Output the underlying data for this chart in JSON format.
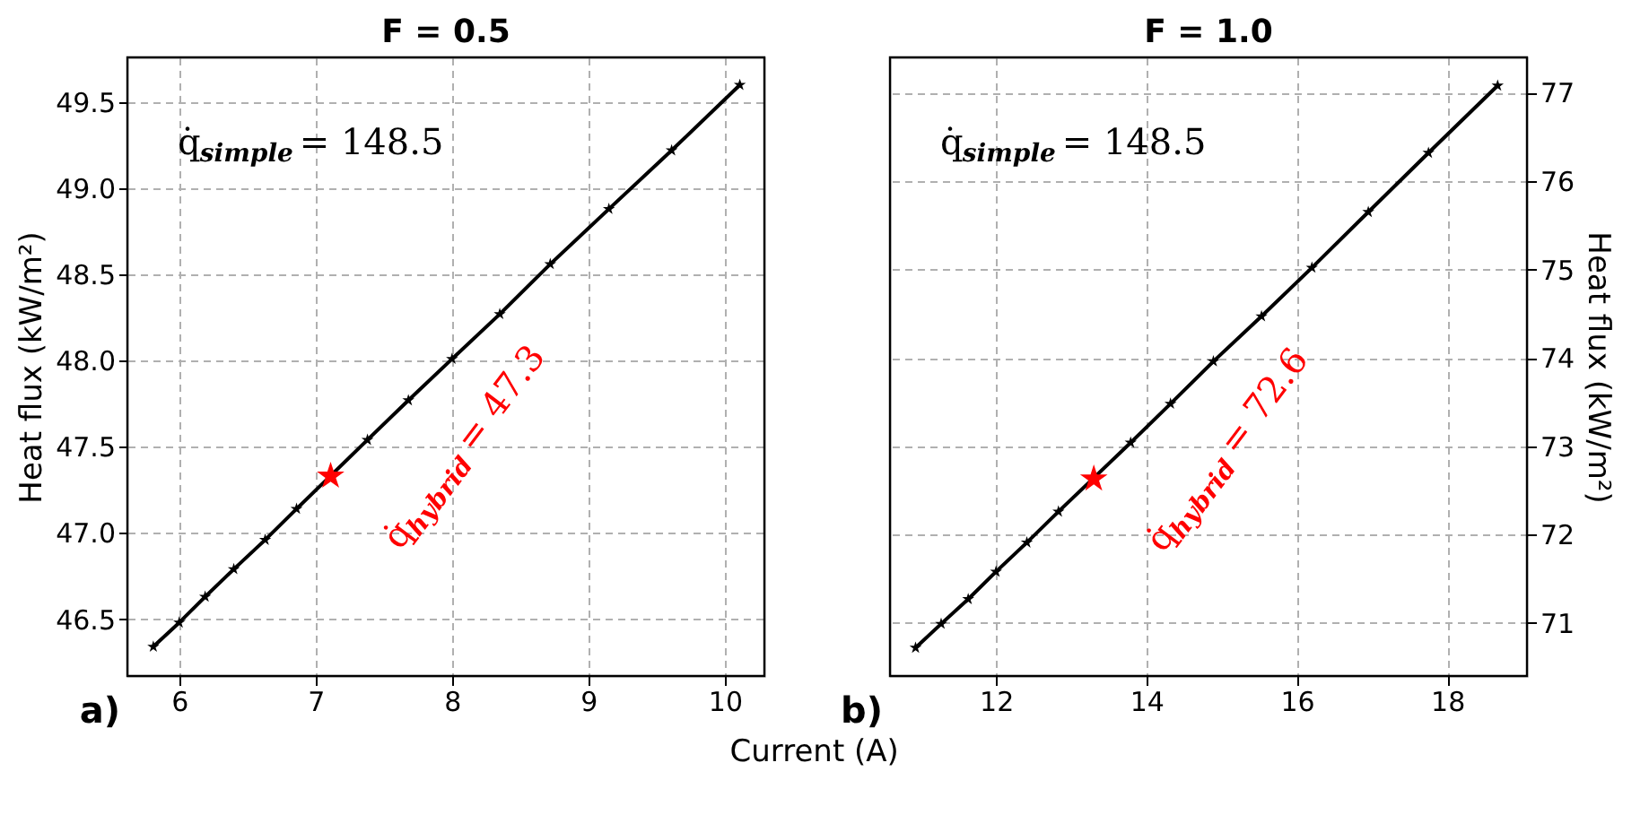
{
  "chart_data": [
    {
      "type": "line",
      "title": "F = 0.5",
      "xlabel": "Current (A)",
      "ylabel": "Heat flux (kW/m²)",
      "xlim": [
        5.62,
        10.29
      ],
      "xticks": [
        6,
        7,
        8,
        9,
        10
      ],
      "ylim": [
        46.17,
        49.76
      ],
      "yticks": [
        46.5,
        {
          "value": 47,
          "label": "47.0"
        },
        47.5,
        {
          "value": 48,
          "label": "48.0"
        },
        48.5,
        {
          "value": 49,
          "label": "49.0"
        },
        49.5
      ],
      "grid": true,
      "marker": "star",
      "line_style": "solid",
      "series": [
        {
          "color": "#000000",
          "x": [
            5.81,
            6.0,
            6.19,
            6.4,
            6.63,
            6.86,
            7.38,
            7.68,
            8.0,
            8.35,
            8.72,
            9.15,
            9.61,
            10.11
          ],
          "values": [
            46.34,
            46.48,
            46.63,
            46.79,
            46.96,
            47.14,
            47.54,
            47.77,
            48.01,
            48.27,
            48.56,
            48.88,
            49.22,
            49.6
          ]
        },
        {
          "type": "scatter",
          "color": "#ff0000",
          "x": [
            7.11
          ],
          "values": [
            47.33
          ]
        }
      ],
      "annotations": [
        "q̇$_{simple}$ = 148.5",
        {
          "text": "q̇$_{hybrid}$ = 47.3",
          "x": 7.11,
          "y": 47.33
        },
        "a)"
      ]
    },
    {
      "type": "line",
      "title": "F = 1.0",
      "ylabel": "Heat flux (kW/m²)",
      "xlim": [
        10.59,
        19.06
      ],
      "xticks": [
        12,
        14,
        16,
        18
      ],
      "ylim": [
        70.4,
        77.4
      ],
      "yticks": [
        71,
        72,
        73,
        74,
        75,
        76,
        77
      ],
      "grid": true,
      "marker": "star",
      "line_style": "solid",
      "series": [
        {
          "color": "#000000",
          "x": [
            10.93,
            11.27,
            11.63,
            12.0,
            12.41,
            12.83,
            13.79,
            14.32,
            14.89,
            15.53,
            16.2,
            16.95,
            17.75,
            18.67
          ],
          "values": [
            70.72,
            70.99,
            71.27,
            71.58,
            71.91,
            72.26,
            73.04,
            73.48,
            73.96,
            74.47,
            75.02,
            75.65,
            76.32,
            77.08
          ]
        },
        {
          "type": "scatter",
          "color": "#ff0000",
          "x": [
            13.3
          ],
          "values": [
            72.63
          ]
        }
      ],
      "annotations": [
        "q̇$_{simple}$ = 148.5",
        {
          "text": "q̇$_{hybrid}$ = 72.6",
          "x": 13.3,
          "y": 72.63
        },
        "b)"
      ]
    }
  ]
}
